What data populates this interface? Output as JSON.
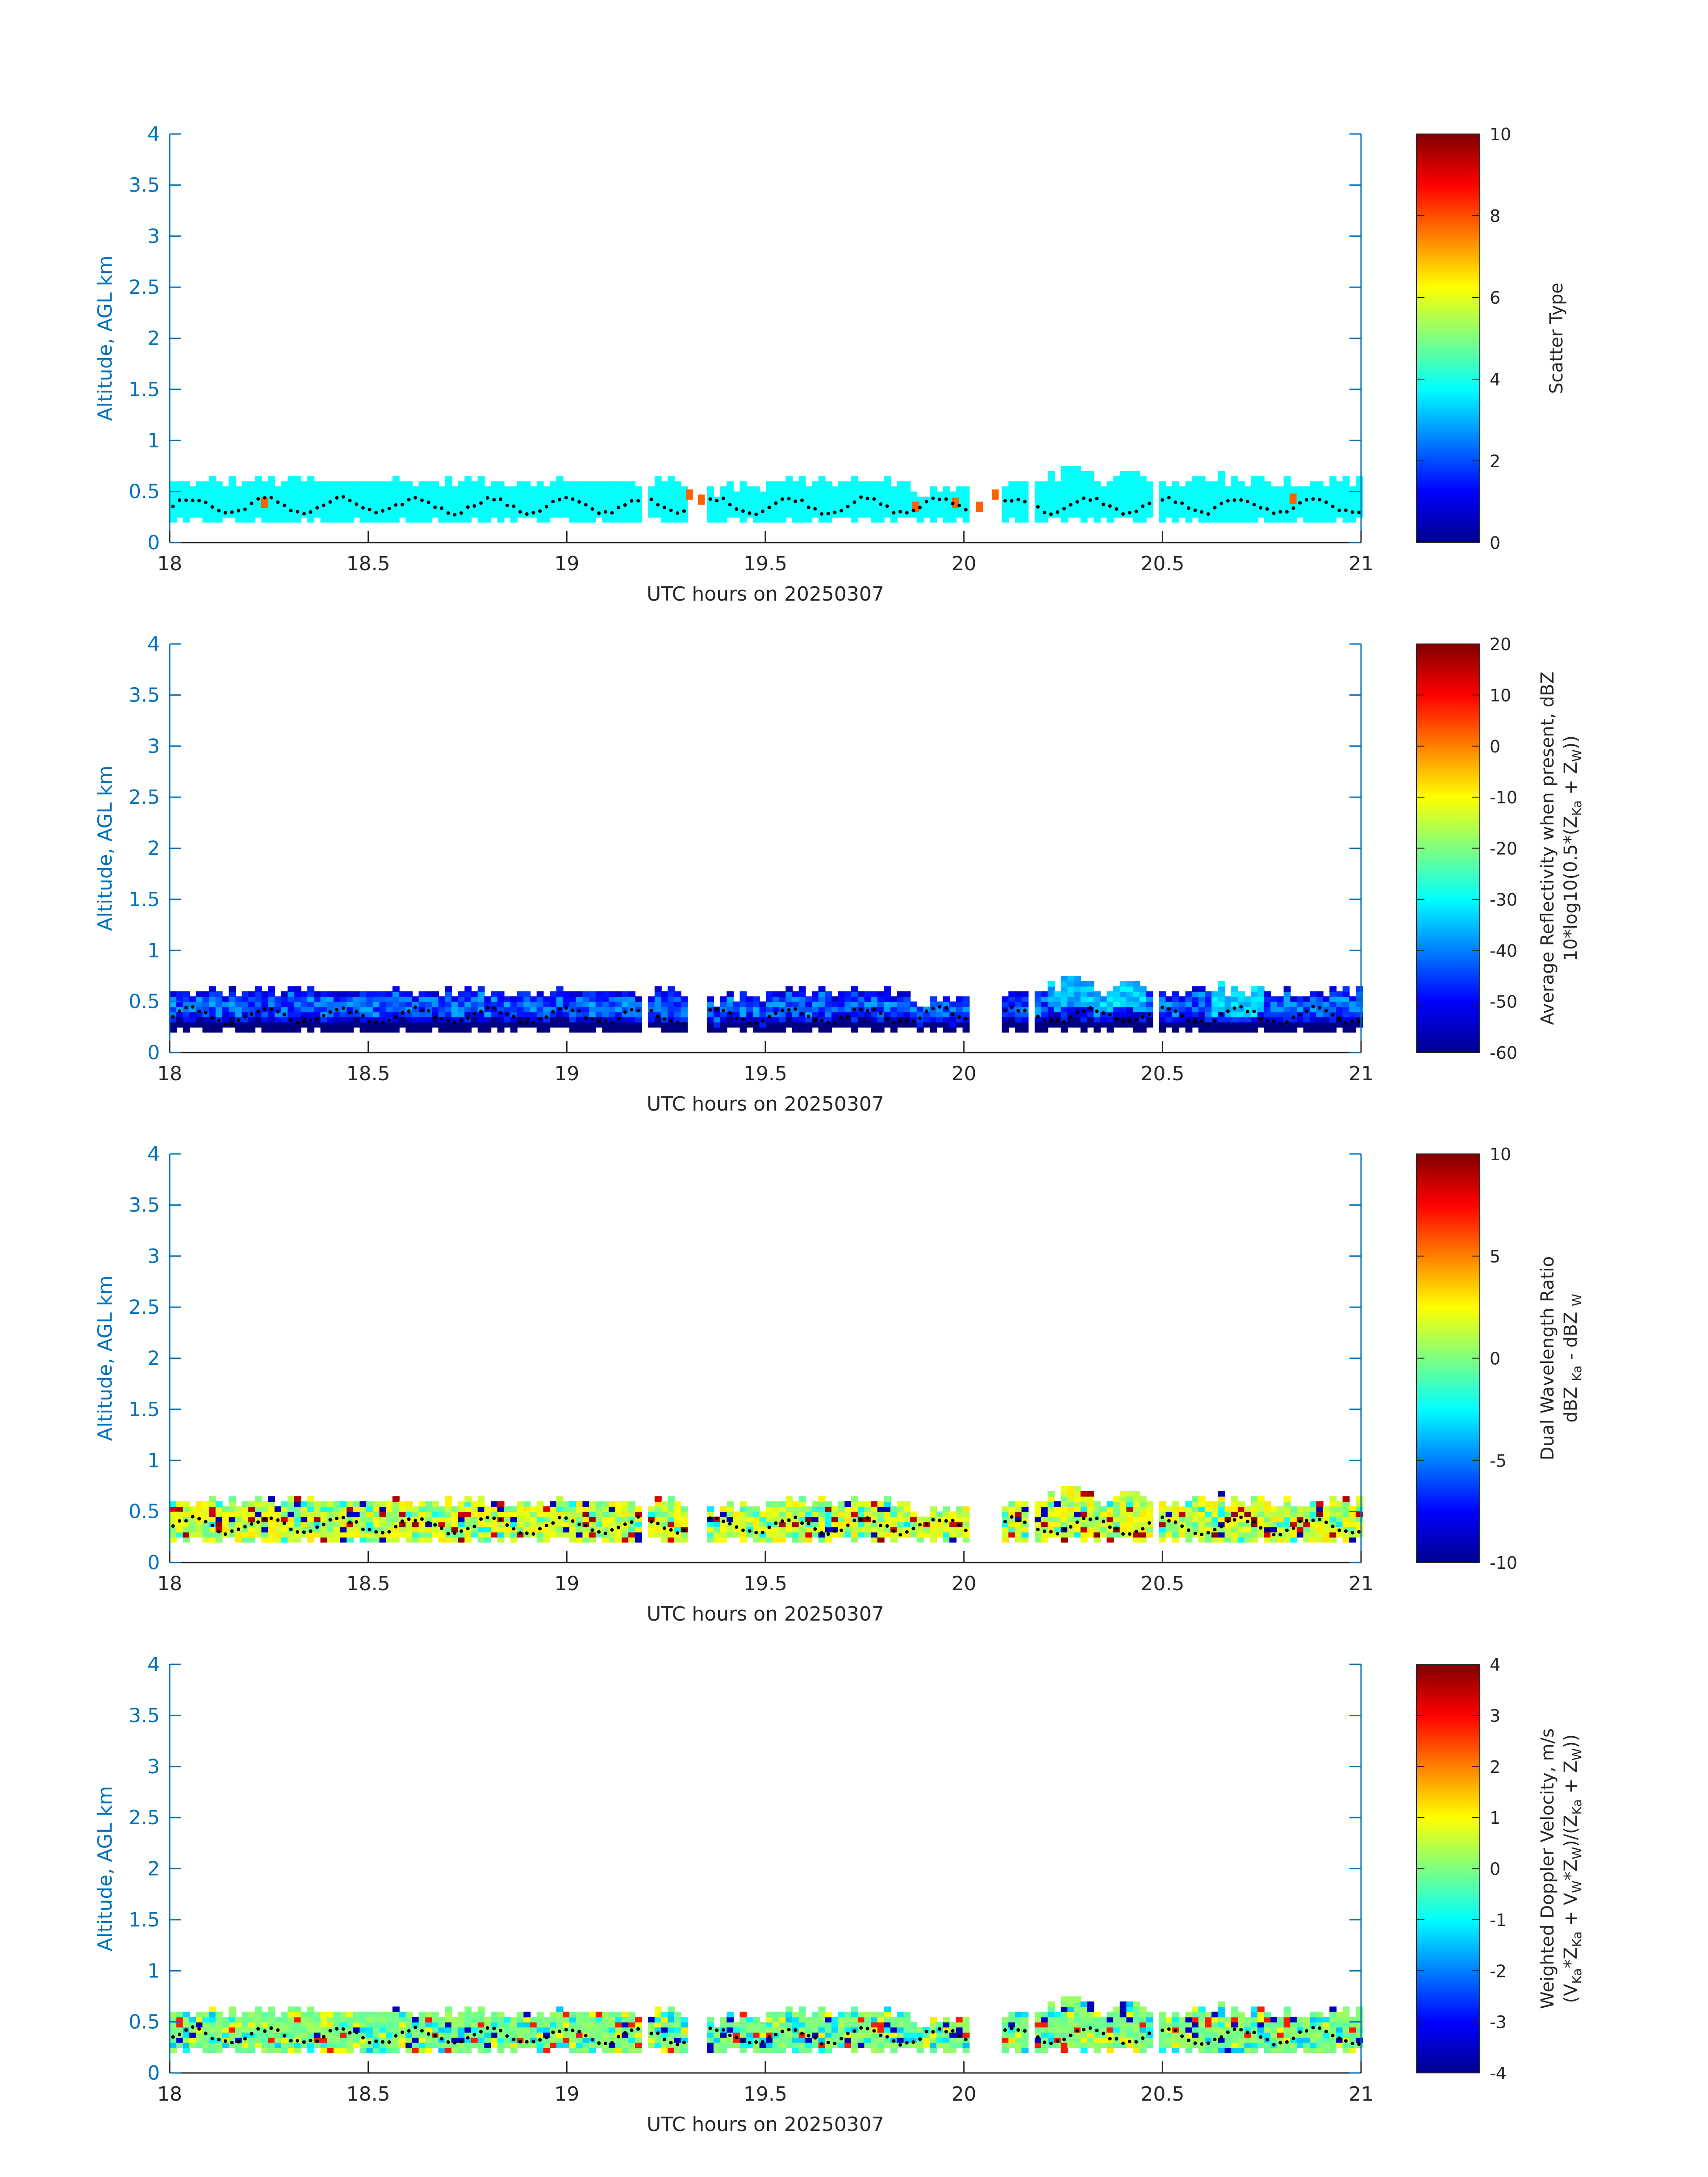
{
  "chart_data": [
    {
      "type": "heatmap",
      "xlabel": "UTC hours on 20250307",
      "ylabel": "Altitude, AGL km",
      "xlim": [
        18,
        21
      ],
      "ylim": [
        0,
        4
      ],
      "xticks": [
        "18",
        "18.5",
        "19",
        "19.5",
        "20",
        "20.5",
        "21"
      ],
      "yticks": [
        "0",
        "0.5",
        "1",
        "1.5",
        "2",
        "2.5",
        "3",
        "3.5",
        "4"
      ],
      "colorbar": {
        "label": "Scatter Type",
        "label2": "",
        "clim": [
          0,
          10
        ],
        "ticks": [
          "0",
          "2",
          "4",
          "6",
          "8",
          "10"
        ]
      },
      "dominant_value": 3.8,
      "scatter_type_pixels": [
        {
          "x": 18.23,
          "y": 0.34,
          "value": 7.8
        },
        {
          "x": 19.3,
          "y": 0.42,
          "value": 7.8
        },
        {
          "x": 19.33,
          "y": 0.37,
          "value": 7.8
        },
        {
          "x": 19.87,
          "y": 0.3,
          "value": 7.8
        },
        {
          "x": 19.97,
          "y": 0.34,
          "value": 7.8
        },
        {
          "x": 20.03,
          "y": 0.3,
          "value": 7.8
        },
        {
          "x": 20.07,
          "y": 0.42,
          "value": 7.8
        },
        {
          "x": 20.82,
          "y": 0.38,
          "value": 7.8
        }
      ]
    },
    {
      "type": "heatmap",
      "xlabel": "UTC hours on 20250307",
      "ylabel": "Altitude, AGL km",
      "xlim": [
        18,
        21
      ],
      "ylim": [
        0,
        4
      ],
      "xticks": [
        "18",
        "18.5",
        "19",
        "19.5",
        "20",
        "20.5",
        "21"
      ],
      "yticks": [
        "0",
        "0.5",
        "1",
        "1.5",
        "2",
        "2.5",
        "3",
        "3.5",
        "4"
      ],
      "colorbar": {
        "label": "Average Reflectivity when present, dBZ",
        "label2": "10*log10(0.5*(Z",
        "label2_parts": [
          "10*log10(0.5*(Z",
          "Ka",
          " + Z",
          "W",
          "))"
        ],
        "clim": [
          -60,
          20
        ],
        "ticks": [
          "-60",
          "-50",
          "-40",
          "-30",
          "-20",
          "-10",
          "0",
          "10",
          "20"
        ]
      }
    },
    {
      "type": "heatmap",
      "xlabel": "UTC hours on 20250307",
      "ylabel": "Altitude, AGL km",
      "xlim": [
        18,
        21
      ],
      "ylim": [
        0,
        4
      ],
      "xticks": [
        "18",
        "18.5",
        "19",
        "19.5",
        "20",
        "20.5",
        "21"
      ],
      "yticks": [
        "0",
        "0.5",
        "1",
        "1.5",
        "2",
        "2.5",
        "3",
        "3.5",
        "4"
      ],
      "colorbar": {
        "label": "Dual Wavelength Ratio",
        "label2_parts": [
          "dBZ ",
          "Ka",
          " - dBZ ",
          "W",
          ""
        ],
        "clim": [
          -10,
          10
        ],
        "ticks": [
          "-10",
          "-5",
          "0",
          "5",
          "10"
        ]
      }
    },
    {
      "type": "heatmap",
      "xlabel": "UTC hours on 20250307",
      "ylabel": "Altitude, AGL km",
      "xlim": [
        18,
        21
      ],
      "ylim": [
        0,
        4
      ],
      "xticks": [
        "18",
        "18.5",
        "19",
        "19.5",
        "20",
        "20.5",
        "21"
      ],
      "yticks": [
        "0",
        "0.5",
        "1",
        "1.5",
        "2",
        "2.5",
        "3",
        "3.5",
        "4"
      ],
      "colorbar": {
        "label": "Weighted Doppler Velocity, m/s",
        "label2_parts": [
          "(V",
          "Ka",
          "*Z",
          "Ka",
          " + V",
          "W",
          "*Z",
          "W",
          ")/(Z",
          "Ka",
          " + Z",
          "W",
          "))"
        ],
        "clim": [
          -4,
          4
        ],
        "ticks": [
          "-4",
          "-3",
          "-2",
          "-1",
          "0",
          "1",
          "2",
          "3",
          "4"
        ]
      }
    }
  ],
  "data_gaps_hours": [
    [
      19.18,
      19.2
    ],
    [
      19.3,
      19.35
    ],
    [
      20.0,
      20.08
    ],
    [
      20.15,
      20.17
    ],
    [
      20.46,
      20.49
    ]
  ],
  "echo_layer_km": {
    "bottom": 0.2,
    "top_typical": 0.6,
    "top_max": 0.75
  },
  "black_dot_trace_km": {
    "min": 0.27,
    "max": 0.45
  }
}
